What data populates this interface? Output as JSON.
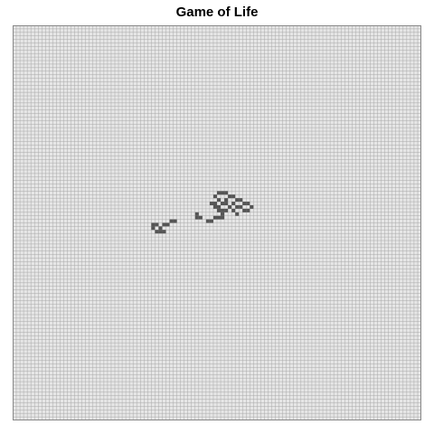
{
  "title": "Game of Life",
  "grid": {
    "cols": 112,
    "rows": 112,
    "cell_color": "#e6e6e6",
    "line_color": "#aaaaaa",
    "border_color": "#888888",
    "live_color": "#555555",
    "live_cells": [
      [
        56,
        47
      ],
      [
        57,
        47
      ],
      [
        58,
        47
      ],
      [
        55,
        48
      ],
      [
        59,
        48
      ],
      [
        60,
        48
      ],
      [
        56,
        49
      ],
      [
        58,
        49
      ],
      [
        61,
        49
      ],
      [
        62,
        49
      ],
      [
        54,
        50
      ],
      [
        55,
        50
      ],
      [
        57,
        50
      ],
      [
        58,
        50
      ],
      [
        60,
        50
      ],
      [
        63,
        50
      ],
      [
        64,
        50
      ],
      [
        55,
        51
      ],
      [
        56,
        51
      ],
      [
        59,
        51
      ],
      [
        61,
        51
      ],
      [
        62,
        51
      ],
      [
        65,
        51
      ],
      [
        56,
        52
      ],
      [
        57,
        52
      ],
      [
        58,
        52
      ],
      [
        60,
        52
      ],
      [
        63,
        52
      ],
      [
        64,
        52
      ],
      [
        57,
        53
      ],
      [
        61,
        53
      ],
      [
        50,
        53
      ],
      [
        50,
        54
      ],
      [
        51,
        54
      ],
      [
        55,
        54
      ],
      [
        56,
        54
      ],
      [
        57,
        54
      ],
      [
        53,
        55
      ],
      [
        54,
        55
      ],
      [
        43,
        55
      ],
      [
        44,
        55
      ],
      [
        41,
        56
      ],
      [
        42,
        56
      ],
      [
        38,
        56
      ],
      [
        39,
        56
      ],
      [
        38,
        57
      ],
      [
        40,
        57
      ],
      [
        39,
        58
      ],
      [
        40,
        58
      ],
      [
        41,
        58
      ]
    ]
  }
}
